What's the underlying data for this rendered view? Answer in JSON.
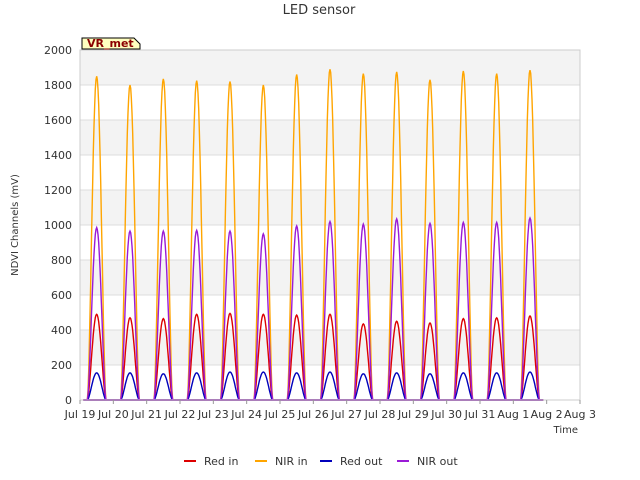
{
  "chart_data": {
    "type": "line",
    "title": "LED sensor",
    "xlabel": "Time",
    "ylabel": "NDVI Channels (mV)",
    "ylim": [
      0,
      2000
    ],
    "yticks": [
      0,
      200,
      400,
      600,
      800,
      1000,
      1200,
      1400,
      1600,
      1800,
      2000
    ],
    "xlim": [
      "Jul 19",
      "Aug 3"
    ],
    "xticks": [
      "Jul 19",
      "Jul 20",
      "Jul 21",
      "Jul 22",
      "Jul 23",
      "Jul 24",
      "Jul 25",
      "Jul 26",
      "Jul 27",
      "Jul 28",
      "Jul 29",
      "Jul 30",
      "Jul 31",
      "Aug 1",
      "Aug 2",
      "Aug 3"
    ],
    "badge": "VR_met",
    "grid": true,
    "legend_position": "bottom",
    "peak_days": [
      "Jul 19",
      "Jul 20",
      "Jul 21",
      "Jul 22",
      "Jul 23",
      "Jul 24",
      "Jul 25",
      "Jul 26",
      "Jul 27",
      "Jul 28",
      "Jul 29",
      "Jul 30",
      "Jul 31",
      "Aug 1"
    ],
    "series": [
      {
        "name": "Red in",
        "color": "#dd0000",
        "daily_peaks": [
          490,
          470,
          465,
          490,
          495,
          490,
          485,
          490,
          435,
          450,
          440,
          465,
          470,
          480
        ]
      },
      {
        "name": "NIR in",
        "color": "#ffa500",
        "daily_peaks": [
          1850,
          1800,
          1835,
          1825,
          1820,
          1800,
          1860,
          1890,
          1865,
          1875,
          1830,
          1880,
          1865,
          1885
        ]
      },
      {
        "name": "Red out",
        "color": "#0000bb",
        "daily_peaks": [
          155,
          155,
          150,
          155,
          160,
          160,
          155,
          160,
          150,
          155,
          150,
          155,
          155,
          160
        ]
      },
      {
        "name": "NIR out",
        "color": "#9a1ad6",
        "daily_peaks": [
          985,
          965,
          965,
          970,
          965,
          950,
          995,
          1020,
          1005,
          1035,
          1010,
          1015,
          1015,
          1040
        ]
      }
    ]
  }
}
